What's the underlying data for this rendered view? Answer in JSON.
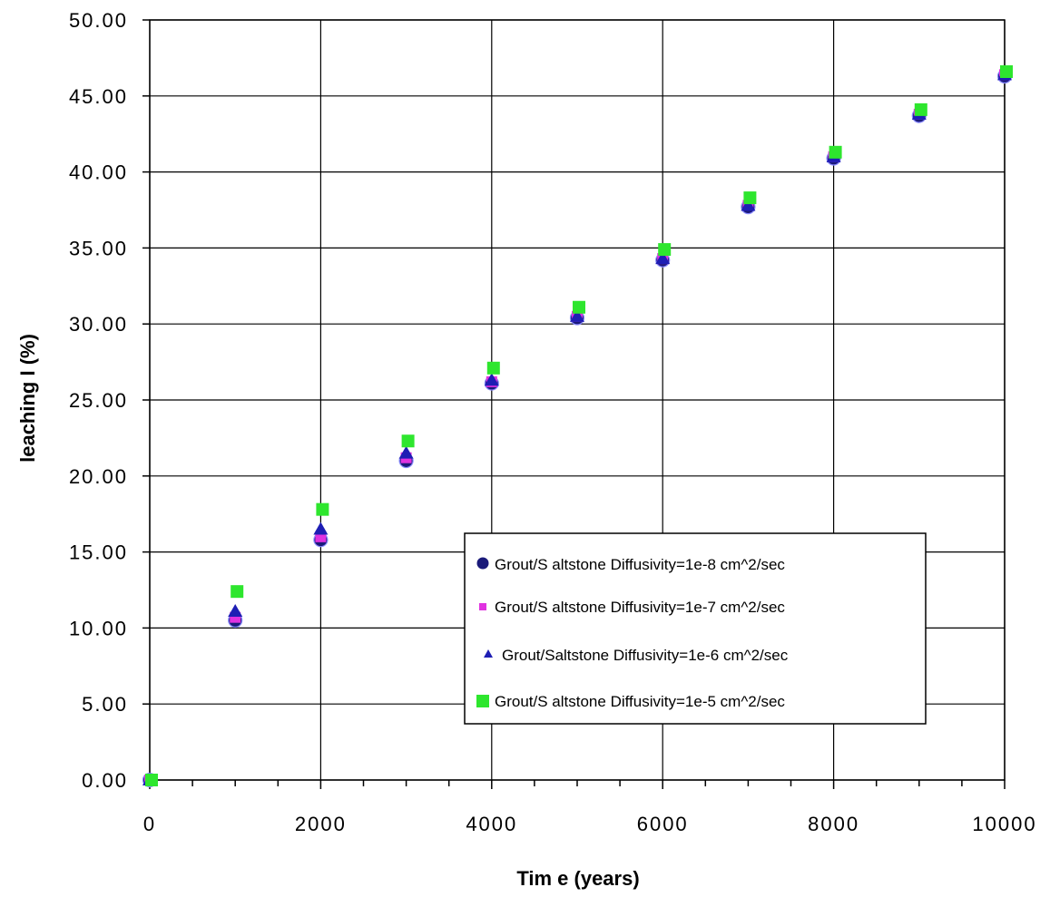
{
  "chart_data": {
    "type": "scatter",
    "title": "",
    "xlabel": "Tim e (years)",
    "ylabel": "leaching I (%)",
    "xlim": [
      0,
      10000
    ],
    "ylim": [
      0,
      50
    ],
    "x_major_step": 2000,
    "x_minor_step": 500,
    "y_major_step": 5,
    "x_ticks": [
      "0",
      "2000",
      "4000",
      "6000",
      "8000",
      "10000"
    ],
    "y_ticks": [
      "0.00",
      "5.00",
      "10.00",
      "15.00",
      "20.00",
      "25.00",
      "30.00",
      "35.00",
      "40.00",
      "45.00",
      "50.00"
    ],
    "grid": true,
    "legend_position": "center-right",
    "x": [
      0,
      1000,
      2000,
      3000,
      4000,
      5000,
      6000,
      7000,
      8000,
      9000,
      10000
    ],
    "series": [
      {
        "name": "Grout/S altstone Diffusivity=1e-8 cm^2/sec",
        "marker": "circle",
        "color": "#1a1a7a",
        "values": [
          0,
          10.5,
          15.8,
          21.0,
          26.1,
          30.4,
          34.2,
          37.7,
          40.9,
          43.7,
          46.3
        ]
      },
      {
        "name": "Grout/S altstone Diffusivity=1e-7 cm^2/sec",
        "marker": "square-small",
        "color": "#e032e0",
        "values": [
          0,
          10.7,
          16.0,
          21.2,
          26.2,
          30.5,
          34.3,
          37.8,
          41.0,
          43.8,
          46.4
        ]
      },
      {
        "name": "Grout/Saltstone Diffusivity=1e-6 cm^2/sec",
        "marker": "triangle",
        "color": "#1e1eb4",
        "values": [
          0,
          11.1,
          16.5,
          21.5,
          26.3,
          30.5,
          34.3,
          37.8,
          41.0,
          43.8,
          46.4
        ]
      },
      {
        "name": "Grout/S altstone Diffusivity=1e-5 cm^2/sec",
        "marker": "square",
        "color": "#2ee62e",
        "values": [
          0,
          12.4,
          17.8,
          22.3,
          27.1,
          31.1,
          34.9,
          38.3,
          41.3,
          44.1,
          46.6
        ]
      }
    ]
  }
}
